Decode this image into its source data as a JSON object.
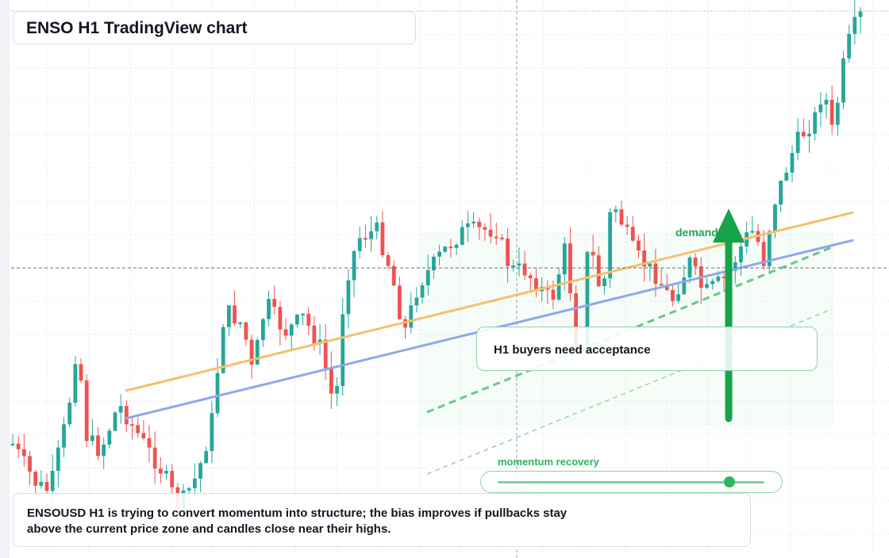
{
  "header": {
    "title": "ENSO H1 TradingView chart"
  },
  "annotations": {
    "callout": "H1 buyers need acceptance",
    "demand_label": "demand",
    "momentum_label": "momentum recovery",
    "momentum_level": 0.87
  },
  "summary": {
    "text": "ENSOUSD H1 is trying to convert momentum into structure; the bias improves if pullbacks stay above the current price zone and candles close near their highs."
  },
  "colors": {
    "up": "#26a69a",
    "down": "#ef5350",
    "orange_line": "#f5c06c",
    "blue_line": "#8fa8ec",
    "green_accent": "#23a55a",
    "grid": "#e6e9f0"
  },
  "chart_data": {
    "type": "candlestick",
    "title": "ENSO H1 TradingView chart",
    "timeframe": "H1",
    "candle_count": 150,
    "y_range_relative": [
      0,
      100
    ],
    "crosshair": "dashed horizontal and vertical lines",
    "trendlines": [
      "orange rising trendline",
      "blue rising trendline",
      "green dashed channel lines"
    ],
    "demand_zone": "shaded green area in the middle-right of the chart",
    "arrow": "large green upward arrow near the right side"
  }
}
